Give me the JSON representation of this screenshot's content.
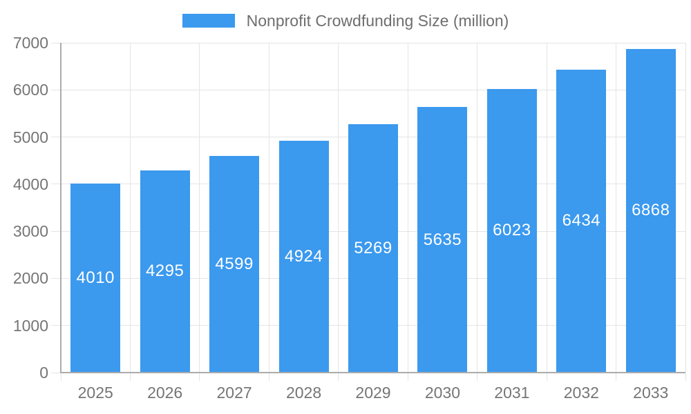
{
  "legend": {
    "label": "Nonprofit Crowdfunding Size (million)"
  },
  "chart_data": {
    "type": "bar",
    "title": "Nonprofit Crowdfunding Size (million)",
    "categories": [
      "2025",
      "2026",
      "2027",
      "2028",
      "2029",
      "2030",
      "2031",
      "2032",
      "2033"
    ],
    "series": [
      {
        "name": "Nonprofit Crowdfunding Size (million)",
        "values": [
          4010,
          4295,
          4599,
          4924,
          5269,
          5635,
          6023,
          6434,
          6868
        ]
      }
    ],
    "xlabel": "",
    "ylabel": "",
    "ylim": [
      0,
      7000
    ],
    "ytick_step": 1000,
    "grid": true,
    "legend_position": "top",
    "value_labels": "inside-center-white",
    "colors": {
      "bar": "#3B99EE",
      "gridline": "#e4e4e4",
      "axis_line": "#ababab",
      "axis_text": "#757575",
      "value_label": "#ffffff",
      "legend_text": "#6e6e6e"
    }
  }
}
